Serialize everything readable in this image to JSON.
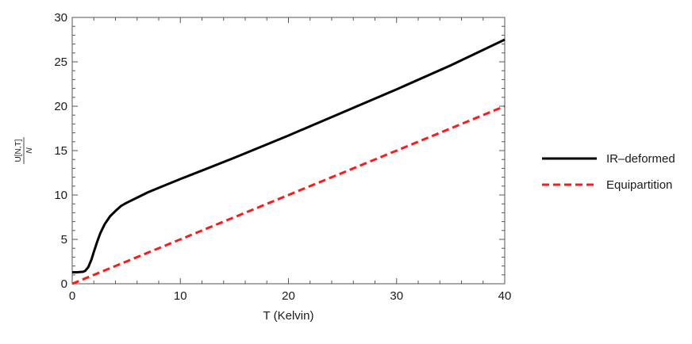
{
  "chart_data": {
    "type": "line",
    "title": "",
    "xlabel": "T (Kelvin)",
    "ylabel_numerator": "U[N,T]",
    "ylabel_denominator": "N",
    "xlim": [
      0,
      40
    ],
    "ylim": [
      0,
      30
    ],
    "xticks": [
      0,
      10,
      20,
      30,
      40
    ],
    "yticks": [
      0,
      5,
      10,
      15,
      20,
      25,
      30
    ],
    "grid": false,
    "legend_position": "right",
    "series": [
      {
        "name": "IR–deformed",
        "color": "#000000",
        "dash": "solid",
        "x": [
          0,
          0.5,
          1,
          1.2,
          1.5,
          1.8,
          2.0,
          2.3,
          2.6,
          3.0,
          3.5,
          4.0,
          4.5,
          5.0,
          6.0,
          7.0,
          8.0,
          10.0,
          12.0,
          15.0,
          20.0,
          25.0,
          30.0,
          35.0,
          40.0
        ],
        "y": [
          1.3,
          1.3,
          1.35,
          1.45,
          1.9,
          2.8,
          3.6,
          4.7,
          5.7,
          6.7,
          7.6,
          8.2,
          8.75,
          9.1,
          9.7,
          10.3,
          10.8,
          11.8,
          12.75,
          14.2,
          16.7,
          19.3,
          21.9,
          24.6,
          27.5
        ]
      },
      {
        "name": "Equipartition",
        "color": "#ff1a1a",
        "dash": "dashed",
        "x": [
          0,
          40
        ],
        "y": [
          0,
          20
        ]
      }
    ]
  }
}
